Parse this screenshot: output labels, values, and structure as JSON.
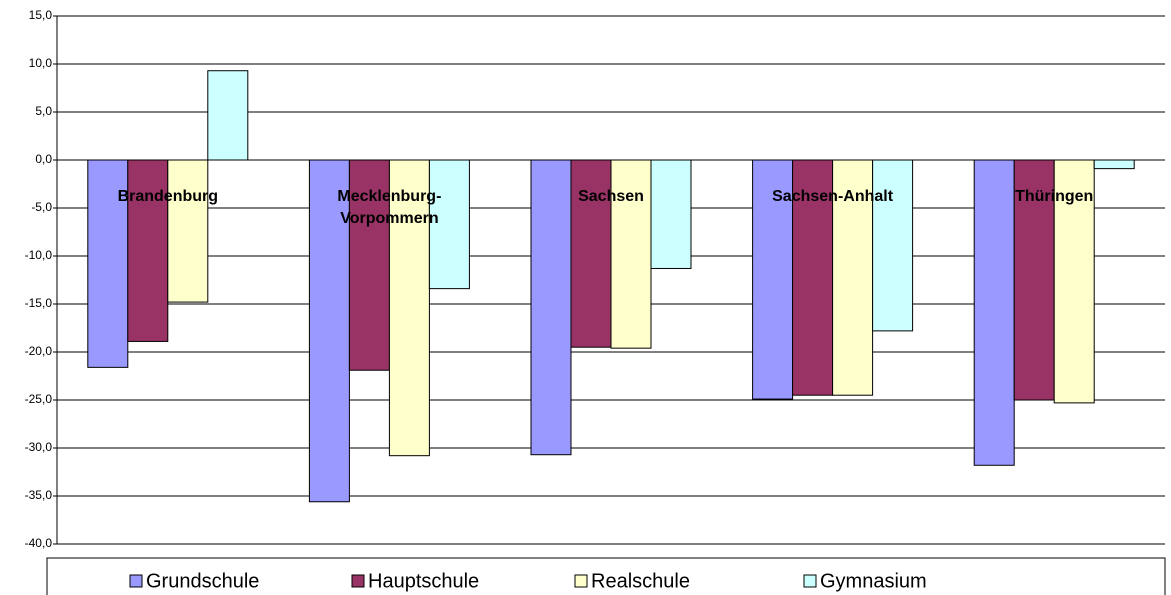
{
  "chart_data": {
    "type": "bar",
    "categories": [
      "Brandenburg",
      "Mecklenburg-\nVorpommern",
      "Sachsen",
      "Sachsen-Anhalt",
      "Thüringen"
    ],
    "series": [
      {
        "name": "Grundschule",
        "color": "#9999ff",
        "values": [
          -21.6,
          -35.6,
          -30.7,
          -24.9,
          -31.8
        ]
      },
      {
        "name": "Hauptschule",
        "color": "#993366",
        "values": [
          -18.9,
          -21.9,
          -19.5,
          -24.5,
          -25.0
        ]
      },
      {
        "name": "Realschule",
        "color": "#ffffcc",
        "values": [
          -14.8,
          -30.8,
          -19.6,
          -24.5,
          -25.3
        ]
      },
      {
        "name": "Gymnasium",
        "color": "#ccffff",
        "values": [
          9.3,
          -13.4,
          -11.3,
          -17.8,
          -0.9
        ]
      }
    ],
    "ylim": [
      -40,
      15
    ],
    "yticks": [
      {
        "value": -40,
        "label": "-40,0"
      },
      {
        "value": -35,
        "label": "-35,0"
      },
      {
        "value": -30,
        "label": "-30,0"
      },
      {
        "value": -25,
        "label": "-25,0"
      },
      {
        "value": -20,
        "label": "-20,0"
      },
      {
        "value": -15,
        "label": "-15,0"
      },
      {
        "value": -10,
        "label": "-10,0"
      },
      {
        "value": -5,
        "label": "-5,0"
      },
      {
        "value": 0,
        "label": "0,0"
      },
      {
        "value": 5,
        "label": "5,0"
      },
      {
        "value": 10,
        "label": "10,0"
      },
      {
        "value": 15,
        "label": "15,0"
      }
    ],
    "grid": true,
    "legend": "bottom"
  }
}
